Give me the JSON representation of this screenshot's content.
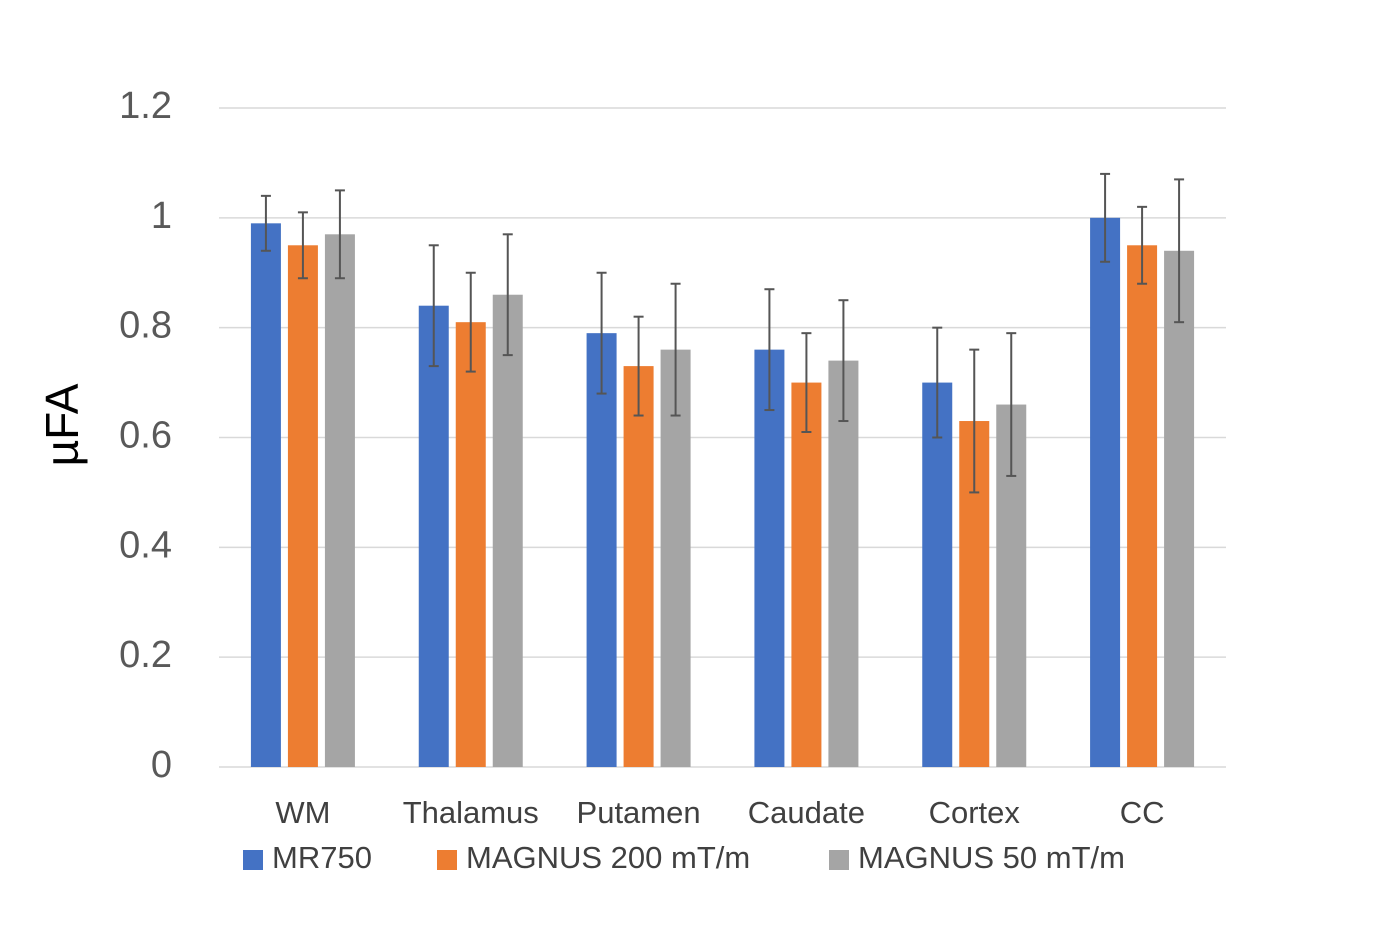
{
  "chart_data": {
    "type": "bar",
    "title": "",
    "xlabel": "",
    "ylabel": "µFA",
    "ylim": [
      0,
      1.2
    ],
    "yticks": [
      "0",
      "0.2",
      "0.4",
      "0.6",
      "0.8",
      "1",
      "1.2"
    ],
    "categories": [
      "WM",
      "Thalamus",
      "Putamen",
      "Caudate",
      "Cortex",
      "CC"
    ],
    "series": [
      {
        "name": "MR750",
        "color": "#4472c4",
        "values": [
          0.99,
          0.84,
          0.79,
          0.76,
          0.7,
          1.0
        ],
        "errors": [
          0.05,
          0.11,
          0.11,
          0.11,
          0.1,
          0.08
        ]
      },
      {
        "name": "MAGNUS 200 mT/m",
        "color": "#ed7d31",
        "values": [
          0.95,
          0.81,
          0.73,
          0.7,
          0.63,
          0.95
        ],
        "errors": [
          0.06,
          0.09,
          0.09,
          0.09,
          0.13,
          0.07
        ]
      },
      {
        "name": "MAGNUS 50 mT/m",
        "color": "#a5a5a5",
        "values": [
          0.97,
          0.86,
          0.76,
          0.74,
          0.66,
          0.94
        ],
        "errors": [
          0.08,
          0.11,
          0.12,
          0.11,
          0.13,
          0.13
        ]
      }
    ],
    "grid": true,
    "legend": "bottom"
  }
}
